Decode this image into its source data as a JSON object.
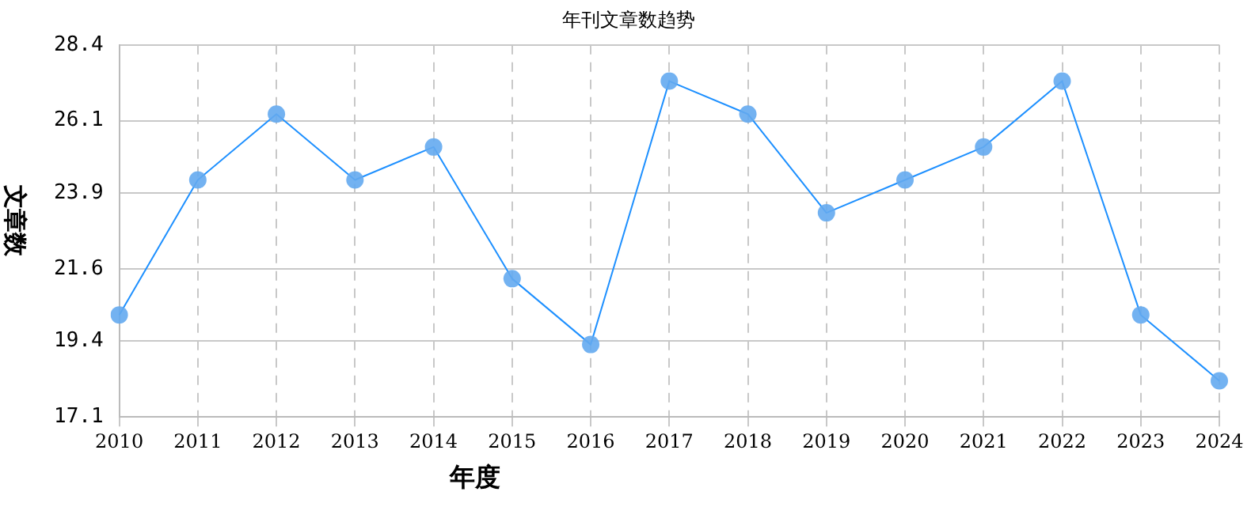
{
  "chart_data": {
    "type": "line",
    "title": "年刊文章数趋势",
    "xlabel": "年度",
    "ylabel": "文章数",
    "categories": [
      "2010",
      "2011",
      "2012",
      "2013",
      "2014",
      "2015",
      "2016",
      "2017",
      "2018",
      "2019",
      "2020",
      "2021",
      "2022",
      "2023",
      "2024"
    ],
    "series": [
      {
        "color": "#1e90ff",
        "values": [
          20.2,
          24.3,
          26.3,
          24.3,
          25.3,
          21.3,
          19.3,
          27.3,
          26.3,
          23.3,
          24.3,
          25.3,
          27.3,
          20.2,
          18.2
        ]
      }
    ],
    "ylim": [
      17.1,
      28.4
    ],
    "yticks": [
      17.1,
      19.4,
      21.6,
      23.9,
      26.1,
      28.4
    ],
    "grid": true,
    "legend": false,
    "marker": "circle",
    "line_style": "solid"
  }
}
